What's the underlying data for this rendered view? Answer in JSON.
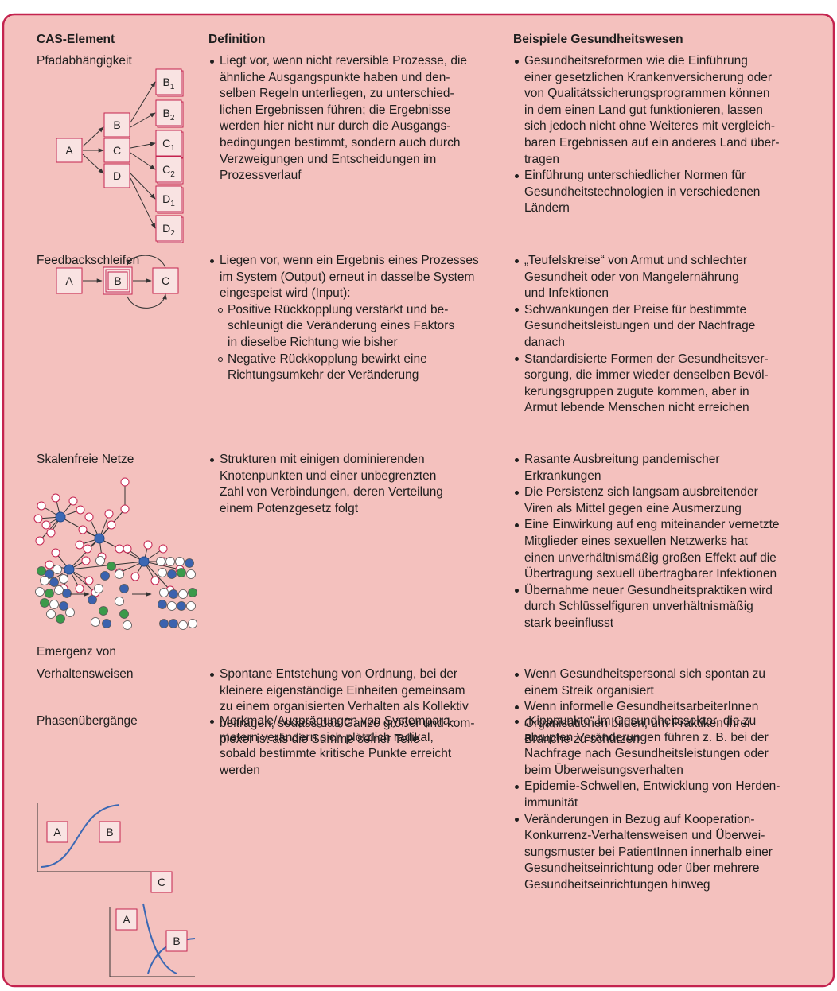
{
  "header": {
    "element": "CAS-Element",
    "definition": "Definition",
    "examples": "Beispiele Gesundheitswesen"
  },
  "rows": [
    {
      "element": [
        "Pfadabhängigkeit"
      ],
      "diagram": {
        "labels": [
          "A",
          "B",
          "C",
          "D",
          {
            "text": "B",
            "sub": "1"
          },
          {
            "text": "B",
            "sub": "2"
          },
          {
            "text": "C",
            "sub": "1"
          },
          {
            "text": "C",
            "sub": "2"
          },
          {
            "text": "D",
            "sub": "1"
          },
          {
            "text": "D",
            "sub": "2"
          }
        ]
      },
      "definition": [
        [
          "Liegt vor, wenn nicht reversible Prozesse, die",
          "ähnliche Ausgangspunkte haben und den-",
          "selben Regeln unterliegen, zu unterschied-",
          "lichen Ergebnissen führen; die Ergebnisse",
          "werden hier nicht nur durch die Ausgangs-",
          "bedingungen bestimmt, sondern auch durch",
          "Verzweigungen und Entscheidungen im",
          "Prozessverlauf"
        ]
      ],
      "examples": [
        [
          "Gesundheitsreformen wie die Einführung",
          "einer gesetzlichen Krankenversicherung oder",
          "von Qualitätssicherungsprogrammen können",
          "in dem einen Land gut funktionieren, lassen",
          "sich jedoch nicht ohne Weiteres mit vergleich-",
          "baren Ergebnissen auf ein anderes Land über-",
          "tragen"
        ],
        [
          "Einführung unterschiedlicher Normen für",
          "Gesundheitstechnologien in verschiedenen",
          "Ländern"
        ]
      ]
    },
    {
      "element": [
        "Feedbackschleifen"
      ],
      "diagram": {
        "labels": [
          "A",
          "B",
          "C"
        ]
      },
      "definition": [
        [
          "Liegen vor, wenn ein Ergebnis eines Prozesses",
          "im System (Output) erneut in dasselbe System",
          "eingespeist wird (Input):"
        ]
      ],
      "definition_sub": [
        [
          "Positive Rückkopplung verstärkt und be-",
          "schleunigt die Veränderung eines Faktors",
          "in dieselbe Richtung wie bisher"
        ],
        [
          "Negative Rückkopplung bewirkt eine",
          "Richtungsumkehr der Veränderung"
        ]
      ],
      "examples": [
        [
          "„Teufelskreise“ von Armut und schlechter",
          "Gesundheit oder von Mangelernährung",
          "und Infektionen"
        ],
        [
          "Schwankungen der Preise für bestimmte",
          "Gesundheitsleistungen und der Nachfrage",
          "danach"
        ],
        [
          "Standardisierte Formen der Gesundheitsver-",
          "sorgung, die immer wieder denselben Bevöl-",
          "kerungsgruppen zugute kommen, aber in",
          "Armut lebende Menschen nicht erreichen"
        ]
      ]
    },
    {
      "element": [
        "Skalenfreie Netze"
      ],
      "definition": [
        [
          "Strukturen mit einigen dominierenden",
          "Knotenpunkten und einer unbegrenzten",
          "Zahl von Verbindungen, deren Verteilung",
          "einem Potenzgesetz folgt"
        ]
      ],
      "examples": [
        [
          "Rasante Ausbreitung pandemischer",
          "Erkrankungen"
        ],
        [
          "Die Persistenz sich langsam ausbreitender",
          "Viren als Mittel gegen eine Ausmerzung"
        ],
        [
          "Eine Einwirkung auf eng miteinander vernetzte",
          "Mitglieder eines sexuellen Netzwerks hat",
          "einen unverhältnismäßig großen Effekt auf die",
          "Übertragung sexuell übertragbarer Infektionen"
        ],
        [
          "Übernahme neuer Gesundheitspraktiken wird",
          "durch Schlüsselfiguren unverhältnismäßig",
          "stark beeinflusst"
        ]
      ]
    },
    {
      "element": [
        "Emergenz von",
        "Verhaltensweisen"
      ],
      "definition": [
        [
          "Spontane Entstehung von Ordnung, bei der",
          "kleinere eigenständige Einheiten gemeinsam",
          "zu einem organisierten Verhalten als Kollektiv",
          "beitragen, sodass das Ganze größer und kom-",
          "plexer ist als die Summe seiner Teile"
        ]
      ],
      "examples": [
        [
          "Wenn Gesundheitspersonal sich spontan zu",
          "einem Streik organisiert"
        ],
        [
          "Wenn informelle GesundheitsarbeiterInnen",
          "Organisationen bilden, um Praktiken ihrer",
          "Branche zu schützen"
        ]
      ]
    },
    {
      "element": [
        "Phasenübergänge"
      ],
      "diagram": {
        "labels": [
          "A",
          "B",
          "C",
          "A",
          "B"
        ]
      },
      "definition": [
        [
          "Merkmale/Ausprägungen von Systempara-",
          "metern verändern sich plötzlich radikal,",
          "sobald bestimmte kritische Punkte erreicht",
          "werden"
        ]
      ],
      "examples": [
        [
          "„Kipppunkte“ im Gesundheitssektor, die zu",
          "abrupten Veränderungen führen z. B. bei der",
          "Nachfrage nach Gesundheitsleistungen oder",
          "beim Überweisungsverhalten"
        ],
        [
          "Epidemie-Schwellen, Entwicklung von Herden-",
          "immunität"
        ],
        [
          "Veränderungen in Bezug auf Kooperation-",
          "Konkurrenz-Verhaltensweisen und Überwei-",
          "sungsmuster bei PatientInnen innerhalb einer",
          "Gesundheitseinrichtung oder über mehrere",
          "Gesundheitseinrichtungen hinweg"
        ]
      ]
    }
  ]
}
